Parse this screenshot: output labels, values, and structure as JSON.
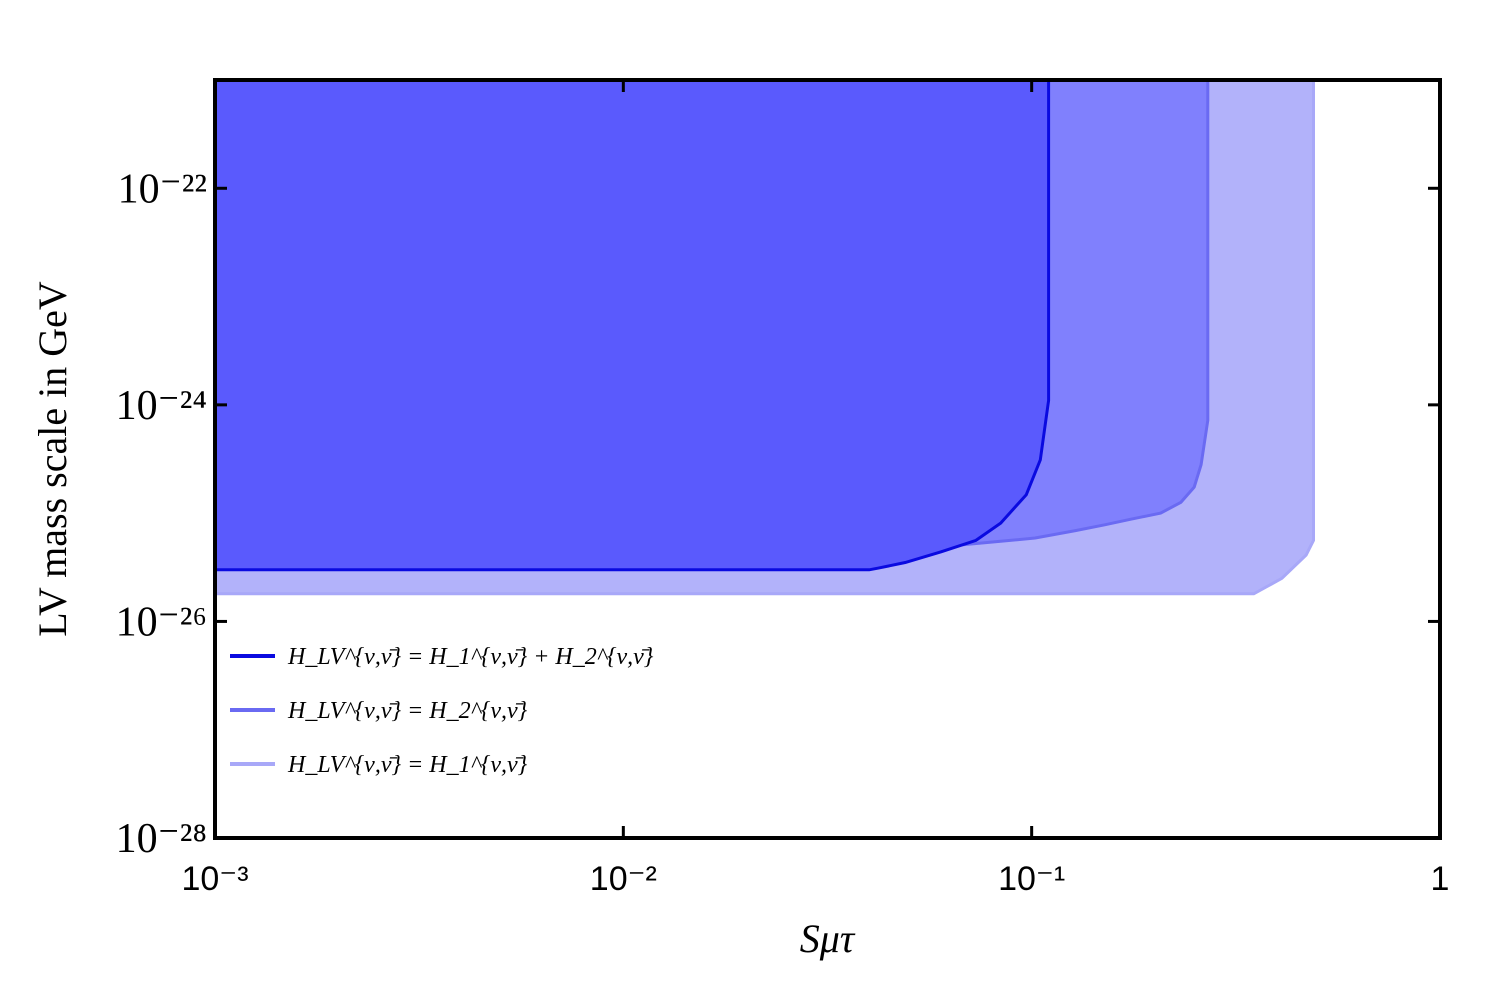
{
  "chart_data": {
    "type": "area",
    "xlabel": "Sμτ",
    "ylabel": "LV mass scale in GeV",
    "xscale": "log",
    "yscale": "log",
    "xlim": [
      0.001,
      1
    ],
    "ylim": [
      1e-28,
      1e-21
    ],
    "xticks": [
      {
        "value": 0.001,
        "label": "10⁻³"
      },
      {
        "value": 0.01,
        "label": "10⁻²"
      },
      {
        "value": 0.1,
        "label": "10⁻¹"
      },
      1
    ],
    "yticks": [
      {
        "value": 1e-28,
        "label": "10⁻²⁸"
      },
      {
        "value": 1e-26,
        "label": "10⁻²⁶"
      },
      {
        "value": 1e-24,
        "label": "10⁻²⁴"
      },
      {
        "value": 1e-22,
        "label": "10⁻²²"
      }
    ],
    "legend": "lower left",
    "series": [
      {
        "name": "H_LV^{ν,ν̄} = H_1^{ν,ν̄}",
        "color": "#a8a8f8",
        "fill": "#b2b2fa",
        "x": [
          0.001,
          0.001,
          0.35,
          0.41,
          0.47,
          0.49,
          0.49
        ],
        "values": [
          1e-21,
          1.8e-26,
          1.8e-26,
          2.5e-26,
          4.1e-26,
          5.6e-26,
          1e-21
        ]
      },
      {
        "name": "H_LV^{ν,ν̄} = H_2^{ν,ν̄}",
        "color": "#6a6af2",
        "fill": "#8080fd",
        "x": [
          0.001,
          0.001,
          0.04,
          0.06,
          0.084,
          0.102,
          0.128,
          0.151,
          0.175,
          0.207,
          0.232,
          0.25,
          0.26,
          0.27,
          0.27
        ],
        "values": [
          1e-21,
          4.1e-26,
          4.1e-26,
          4.9e-26,
          5.5e-26,
          5.9e-26,
          6.9e-26,
          7.8e-26,
          8.8e-26,
          1e-25,
          1.26e-25,
          1.74e-25,
          2.8e-25,
          7.2e-25,
          1e-21
        ]
      },
      {
        "name": "H_LV^{ν,ν̄} = H_1^{ν,ν̄} + H_2^{ν,ν̄}",
        "color": "#0a0ae0",
        "fill": "#5a5afd",
        "x": [
          0.001,
          0.001,
          0.04,
          0.042,
          0.049,
          0.06,
          0.073,
          0.084,
          0.097,
          0.105,
          0.11,
          0.11
        ],
        "values": [
          1e-21,
          3e-26,
          3e-26,
          3.1e-26,
          3.5e-26,
          4.4e-26,
          5.6e-26,
          8.1e-26,
          1.48e-25,
          3.1e-25,
          1.1e-24,
          1e-21
        ]
      }
    ]
  }
}
